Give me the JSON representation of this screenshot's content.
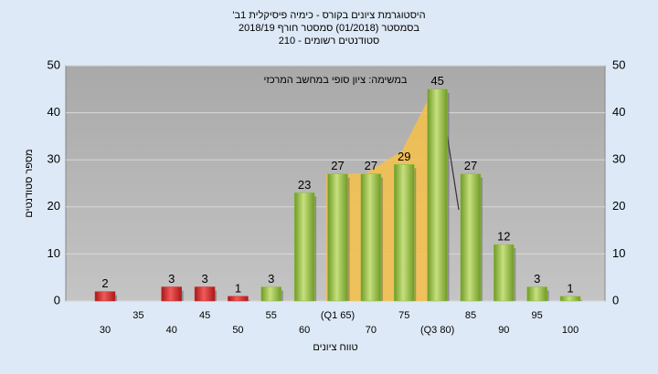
{
  "chart_data": {
    "type": "bar",
    "title": "היסטוגרמת ציונים בקורס - כימיה פיסיקלית 1ב'",
    "subtitle": "בסמסטר (01/2018) סמסטר חורף 2018/19",
    "subtitle2": "סטודנטים רשומים - 210",
    "annotation": "במשימה: ציון סופי במחשב המרכזי",
    "xlabel": "טווח ציונים",
    "ylabel": "מספר סטודנטים",
    "categories": [
      "30",
      "35",
      "40",
      "45",
      "50",
      "55",
      "60",
      "(Q1 65)",
      "70",
      "75",
      "(Q3 80)",
      "85",
      "90",
      "95",
      "100"
    ],
    "values": [
      2,
      null,
      3,
      3,
      1,
      3,
      23,
      27,
      27,
      29,
      45,
      27,
      12,
      3,
      1
    ],
    "colors": [
      "#d42a2a",
      null,
      "#d42a2a",
      "#d42a2a",
      "#d42a2a",
      "#8fbf3a",
      "#8fbf3a",
      "#8fbf3a",
      "#8fbf3a",
      "#8fbf3a",
      "#8fbf3a",
      "#8fbf3a",
      "#8fbf3a",
      "#8fbf3a",
      "#8fbf3a"
    ],
    "ylim": [
      0,
      50
    ],
    "yticks": [
      0,
      10,
      20,
      30,
      40,
      50
    ],
    "grid": true
  }
}
